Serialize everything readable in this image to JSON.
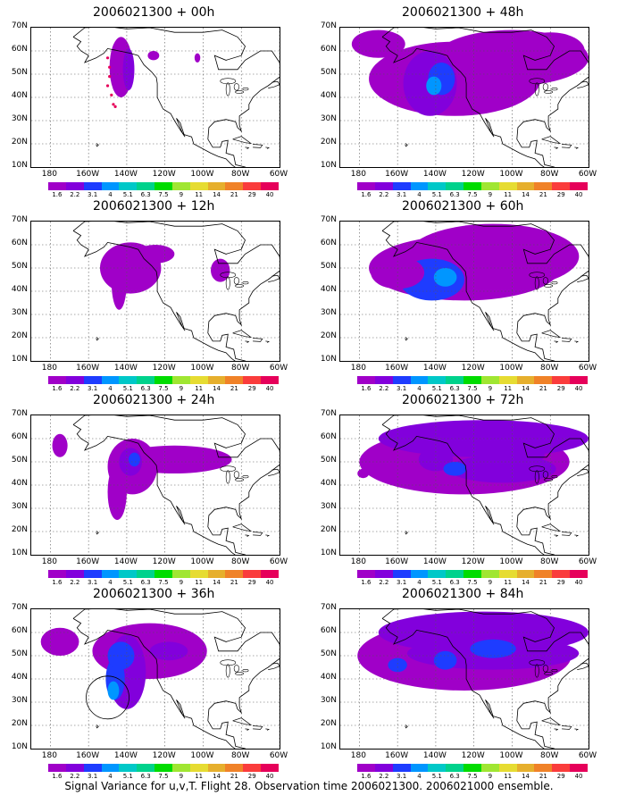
{
  "panels": [
    {
      "title": "2006021300 + 00h"
    },
    {
      "title": "2006021300 + 48h"
    },
    {
      "title": "2006021300 + 12h"
    },
    {
      "title": "2006021300 + 60h"
    },
    {
      "title": "2006021300 + 24h"
    },
    {
      "title": "2006021300 + 72h"
    },
    {
      "title": "2006021300 + 36h"
    },
    {
      "title": "2006021300 + 84h"
    }
  ],
  "lat_labels": [
    "70N",
    "60N",
    "50N",
    "40N",
    "30N",
    "20N",
    "10N"
  ],
  "lon_labels": [
    "180",
    "160W",
    "140W",
    "120W",
    "100W",
    "80W",
    "60W"
  ],
  "colorbar": {
    "labels": [
      "1.6",
      "2.2",
      "3.1",
      "4",
      "5.1",
      "6.3",
      "7.5",
      "9",
      "11",
      "14",
      "21",
      "29",
      "40"
    ],
    "colors": [
      "#a000c8",
      "#8200dc",
      "#1e3cff",
      "#0096ff",
      "#00c8c8",
      "#00d28c",
      "#00dc00",
      "#a0e632",
      "#e6dc32",
      "#e6af2d",
      "#f08228",
      "#fa3c3c",
      "#e6005a"
    ]
  },
  "caption": "Signal Variance for u,v,T. Flight 28. Observation time 2006021300. 2006021000 ensemble."
}
